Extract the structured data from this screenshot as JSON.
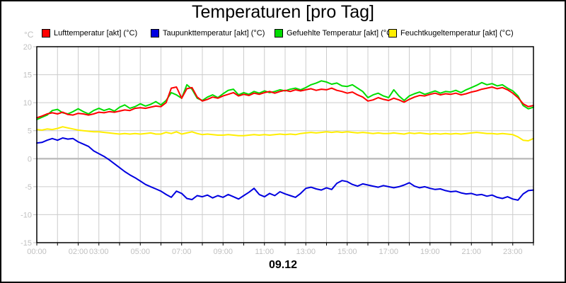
{
  "title": "Temperaturen [pro Tag]",
  "chart_data": {
    "type": "line",
    "title": "Temperaturen [pro Tag]",
    "xlabel": "09.12",
    "ylabel": "°C",
    "ylim": [
      -15,
      20
    ],
    "y_ticks": [
      20,
      15,
      10,
      5,
      0,
      -5,
      -10,
      -15
    ],
    "x_range_hours": [
      0,
      24
    ],
    "x_tick_labels": [
      {
        "hour": 0,
        "label": "00:00"
      },
      {
        "hour": 2,
        "label": "02:00"
      },
      {
        "hour": 3,
        "label": "03:00"
      },
      {
        "hour": 5,
        "label": "05:00"
      },
      {
        "hour": 7,
        "label": "07:00"
      },
      {
        "hour": 9,
        "label": "09:00"
      },
      {
        "hour": 11,
        "label": "11:00"
      },
      {
        "hour": 13,
        "label": "13:00"
      },
      {
        "hour": 15,
        "label": "15:00"
      },
      {
        "hour": 17,
        "label": "17:00"
      },
      {
        "hour": 19,
        "label": "19:00"
      },
      {
        "hour": 21,
        "label": "21:00"
      },
      {
        "hour": 23,
        "label": "23:00"
      }
    ],
    "grid": {
      "on": true,
      "x_every_hours": 1,
      "color": "#cccccc",
      "zero_line_color": "#bbbbbb"
    },
    "axis_label_color": "#c0c0c0",
    "legend_position": "top",
    "x_hours": [
      0,
      0.25,
      0.5,
      0.75,
      1,
      1.25,
      1.5,
      1.75,
      2,
      2.25,
      2.5,
      2.75,
      3,
      3.25,
      3.5,
      3.75,
      4,
      4.25,
      4.5,
      4.75,
      5,
      5.25,
      5.5,
      5.75,
      6,
      6.25,
      6.5,
      6.75,
      7,
      7.25,
      7.5,
      7.75,
      8,
      8.25,
      8.5,
      8.75,
      9,
      9.25,
      9.5,
      9.75,
      10,
      10.25,
      10.5,
      10.75,
      11,
      11.25,
      11.5,
      11.75,
      12,
      12.25,
      12.5,
      12.75,
      13,
      13.25,
      13.5,
      13.75,
      14,
      14.25,
      14.5,
      14.75,
      15,
      15.25,
      15.5,
      15.75,
      16,
      16.25,
      16.5,
      16.75,
      17,
      17.25,
      17.5,
      17.75,
      18,
      18.25,
      18.5,
      18.75,
      19,
      19.25,
      19.5,
      19.75,
      20,
      20.25,
      20.5,
      20.75,
      21,
      21.25,
      21.5,
      21.75,
      22,
      22.25,
      22.5,
      22.75,
      23,
      23.25,
      23.5,
      23.75,
      24
    ],
    "series": [
      {
        "name": "Lufttemperatur [akt] (°C)",
        "color": "#ff0000",
        "values": [
          7.3,
          7.6,
          8.0,
          8.2,
          8.0,
          8.3,
          7.9,
          7.8,
          8.1,
          8.0,
          7.8,
          8.0,
          8.3,
          8.2,
          8.4,
          8.3,
          8.5,
          8.7,
          8.6,
          9.0,
          9.1,
          9.0,
          9.2,
          9.4,
          9.3,
          10.0,
          12.6,
          12.8,
          10.8,
          12.5,
          12.7,
          11.0,
          10.3,
          10.6,
          11.0,
          10.8,
          11.2,
          11.5,
          11.8,
          11.2,
          11.5,
          11.3,
          11.7,
          11.5,
          11.8,
          12.0,
          11.7,
          12.0,
          12.2,
          12.0,
          12.3,
          12.1,
          12.3,
          12.5,
          12.2,
          12.4,
          12.3,
          12.6,
          12.2,
          12.0,
          11.7,
          11.9,
          11.4,
          11.0,
          10.3,
          10.5,
          10.9,
          10.6,
          10.4,
          10.8,
          10.5,
          10.1,
          10.6,
          11.0,
          11.3,
          11.2,
          11.5,
          11.7,
          11.4,
          11.6,
          11.5,
          11.7,
          11.4,
          11.6,
          11.9,
          12.1,
          12.4,
          12.6,
          12.8,
          12.5,
          12.7,
          12.3,
          11.7,
          10.9,
          9.8,
          9.3,
          9.5
        ]
      },
      {
        "name": "Taupunkttemperatur [akt] (°C)",
        "color": "#0000e0",
        "values": [
          2.8,
          2.9,
          3.3,
          3.6,
          3.3,
          3.7,
          3.5,
          3.6,
          3.0,
          2.6,
          2.2,
          1.4,
          0.9,
          0.4,
          -0.2,
          -0.9,
          -1.6,
          -2.3,
          -2.9,
          -3.4,
          -4.0,
          -4.6,
          -5.0,
          -5.4,
          -5.8,
          -6.4,
          -6.9,
          -5.8,
          -6.2,
          -7.1,
          -7.3,
          -6.6,
          -6.8,
          -6.5,
          -7.0,
          -6.6,
          -6.9,
          -6.4,
          -6.8,
          -7.2,
          -6.6,
          -6.0,
          -5.3,
          -6.4,
          -6.8,
          -6.2,
          -6.6,
          -5.9,
          -6.3,
          -6.6,
          -6.9,
          -6.2,
          -5.3,
          -5.1,
          -5.4,
          -5.6,
          -5.2,
          -5.5,
          -4.4,
          -3.9,
          -4.1,
          -4.6,
          -4.9,
          -4.5,
          -4.7,
          -4.9,
          -5.1,
          -4.8,
          -5.0,
          -5.2,
          -5.0,
          -4.7,
          -4.3,
          -4.9,
          -5.2,
          -5.0,
          -5.3,
          -5.5,
          -5.4,
          -5.7,
          -5.9,
          -5.8,
          -6.1,
          -6.3,
          -6.2,
          -6.5,
          -6.4,
          -6.7,
          -6.5,
          -6.9,
          -7.1,
          -6.8,
          -7.2,
          -7.4,
          -6.3,
          -5.7,
          -5.6
        ]
      },
      {
        "name": "Gefuehlte Temperatur [akt] (°C)",
        "color": "#00dd00",
        "values": [
          7.0,
          7.4,
          7.8,
          8.6,
          8.8,
          8.2,
          8.0,
          8.4,
          8.9,
          8.4,
          8.0,
          8.6,
          9.0,
          8.6,
          8.9,
          8.5,
          9.2,
          9.6,
          9.0,
          9.3,
          9.8,
          9.4,
          9.7,
          10.2,
          9.6,
          10.4,
          11.8,
          11.4,
          10.8,
          13.2,
          12.4,
          10.8,
          10.4,
          11.0,
          11.4,
          10.9,
          11.6,
          12.2,
          12.4,
          11.4,
          11.8,
          11.5,
          12.0,
          11.7,
          12.1,
          11.8,
          12.0,
          12.3,
          12.1,
          12.4,
          12.6,
          12.3,
          12.7,
          13.2,
          13.5,
          13.9,
          13.7,
          13.3,
          13.5,
          13.0,
          12.9,
          13.2,
          12.6,
          12.0,
          10.9,
          11.4,
          11.7,
          11.2,
          10.9,
          12.3,
          11.2,
          10.4,
          11.2,
          11.6,
          11.9,
          11.5,
          11.8,
          12.1,
          11.7,
          12.0,
          11.9,
          12.2,
          11.8,
          12.3,
          12.7,
          13.1,
          13.6,
          13.2,
          13.4,
          13.0,
          13.2,
          12.6,
          12.1,
          11.2,
          9.5,
          8.9,
          9.2
        ]
      },
      {
        "name": "Feuchtkugeltemperatur [akt] (°C)",
        "color": "#ffee00",
        "values": [
          5.2,
          5.1,
          5.3,
          5.2,
          5.4,
          5.7,
          5.5,
          5.3,
          5.1,
          5.0,
          4.9,
          4.8,
          4.8,
          4.7,
          4.6,
          4.5,
          4.4,
          4.5,
          4.4,
          4.5,
          4.4,
          4.5,
          4.6,
          4.4,
          4.4,
          4.7,
          4.5,
          4.8,
          4.4,
          4.6,
          4.8,
          4.5,
          4.3,
          4.4,
          4.3,
          4.2,
          4.2,
          4.3,
          4.2,
          4.1,
          4.1,
          4.2,
          4.3,
          4.2,
          4.3,
          4.2,
          4.3,
          4.4,
          4.3,
          4.4,
          4.3,
          4.5,
          4.6,
          4.7,
          4.6,
          4.7,
          4.8,
          4.7,
          4.8,
          4.7,
          4.8,
          4.7,
          4.6,
          4.7,
          4.6,
          4.5,
          4.6,
          4.5,
          4.5,
          4.6,
          4.5,
          4.4,
          4.6,
          4.5,
          4.6,
          4.5,
          4.4,
          4.5,
          4.4,
          4.5,
          4.4,
          4.5,
          4.4,
          4.5,
          4.6,
          4.7,
          4.6,
          4.5,
          4.5,
          4.4,
          4.5,
          4.4,
          4.3,
          3.9,
          3.3,
          3.2,
          3.6
        ]
      }
    ]
  }
}
